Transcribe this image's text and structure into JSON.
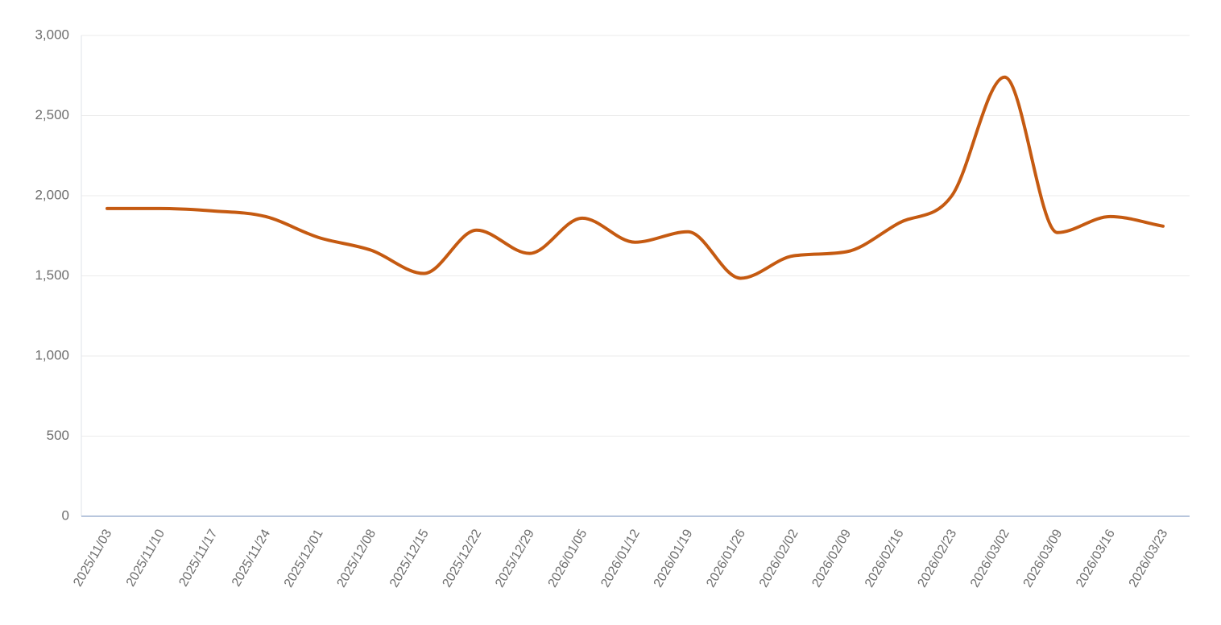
{
  "chart_data": {
    "type": "line",
    "title": "",
    "xlabel": "",
    "ylabel": "",
    "x": [
      "2025/11/03",
      "2025/11/10",
      "2025/11/17",
      "2025/11/24",
      "2025/12/01",
      "2025/12/08",
      "2025/12/15",
      "2025/12/22",
      "2025/12/29",
      "2026/01/05",
      "2026/01/12",
      "2026/01/19",
      "2026/01/26",
      "2026/02/02",
      "2026/02/09",
      "2026/02/16",
      "2026/02/23",
      "2026/03/02",
      "2026/03/09",
      "2026/03/16",
      "2026/03/23"
    ],
    "series": [
      {
        "values": [
          1920,
          1920,
          1905,
          1870,
          1740,
          1660,
          1515,
          1785,
          1640,
          1860,
          1710,
          1775,
          1485,
          1625,
          1650,
          1830,
          2000,
          2740,
          1770,
          1870,
          1810
        ]
      }
    ],
    "ylim": [
      0,
      3000
    ],
    "yticks": [
      0,
      500,
      1000,
      1500,
      2000,
      2500,
      3000
    ],
    "ytick_labels": [
      "0",
      "500",
      "1,000",
      "1,500",
      "2,000",
      "2,500",
      "3,000"
    ],
    "smooth": true,
    "grid": "horizontal",
    "legend": "none",
    "colors": {
      "line": "#c55a11",
      "grid": "#ebebeb",
      "x_axis": "#b8c6dd",
      "tick_text": "#6e6e6e"
    }
  }
}
